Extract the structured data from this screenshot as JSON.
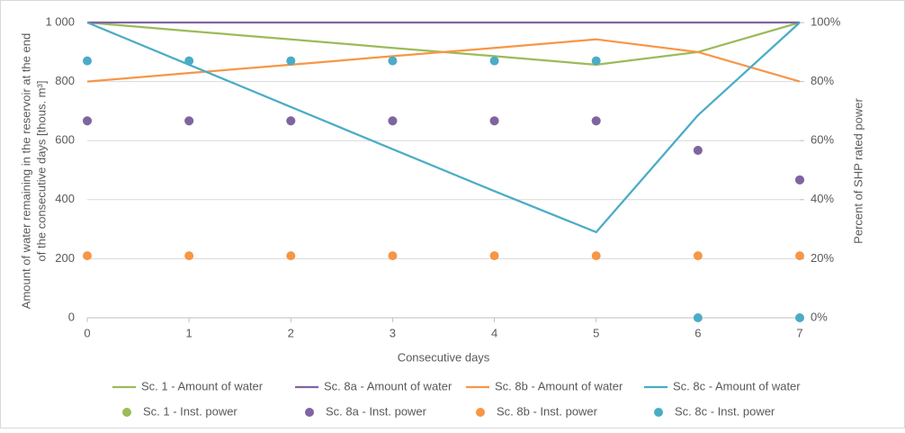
{
  "chart_data": {
    "type": "combo",
    "x_label": "Consecutive days",
    "y_label_lines": [
      "Amount of water remaining in the reservoir at the end",
      "of the consecutive days [thous. m³]"
    ],
    "y2_label": "Percent of SHP rated power",
    "x": [
      0,
      1,
      2,
      3,
      4,
      5,
      6,
      7
    ],
    "xlim": [
      0,
      7
    ],
    "xticks": [
      0,
      1,
      2,
      3,
      4,
      5,
      6,
      7
    ],
    "ylim": [
      0,
      1000
    ],
    "yticks": [
      0,
      200,
      400,
      600,
      800,
      {
        "value": 1000,
        "label": "1 000"
      }
    ],
    "y2lim": [
      0,
      100
    ],
    "y2ticks": [
      {
        "value": 0,
        "label": "0%"
      },
      {
        "value": 20,
        "label": "20%"
      },
      {
        "value": 40,
        "label": "40%"
      },
      {
        "value": 60,
        "label": "60%"
      },
      {
        "value": 80,
        "label": "80%"
      },
      {
        "value": 100,
        "label": "100%"
      }
    ],
    "grid": true,
    "series": [
      {
        "name": "Sc. 1 - Amount of water",
        "type": "line",
        "color": "#9bbb59",
        "values": [
          1000,
          971,
          943,
          914,
          886,
          857,
          900,
          1000
        ]
      },
      {
        "name": "Sc. 8a - Amount of water",
        "type": "line",
        "color": "#8064a2",
        "values": [
          1000,
          1000,
          1000,
          1000,
          1000,
          1000,
          1000,
          1000
        ]
      },
      {
        "name": "Sc. 8b - Amount of water",
        "type": "line",
        "color": "#f79646",
        "values": [
          800,
          829,
          857,
          886,
          914,
          943,
          900,
          800
        ]
      },
      {
        "name": "Sc. 8c - Amount of water",
        "type": "line",
        "color": "#4bacc6",
        "values": [
          1000,
          857,
          714,
          571,
          429,
          290,
          686,
          1000
        ]
      },
      {
        "name": "Sc. 1 - Inst. power",
        "type": "scatter",
        "axis": "y2",
        "color": "#9bbb59",
        "values": [
          66.7,
          66.7,
          66.7,
          66.7,
          66.7,
          66.7,
          56.7,
          46.7
        ]
      },
      {
        "name": "Sc. 8a - Inst. power",
        "type": "scatter",
        "axis": "y2",
        "color": "#8064a2",
        "values": [
          66.7,
          66.7,
          66.7,
          66.7,
          66.7,
          66.7,
          56.7,
          46.7
        ]
      },
      {
        "name": "Sc. 8b - Inst. power",
        "type": "scatter",
        "axis": "y2",
        "color": "#f79646",
        "values": [
          21,
          21,
          21,
          21,
          21,
          21,
          21,
          21
        ]
      },
      {
        "name": "Sc. 8c - Inst. power",
        "type": "scatter",
        "axis": "y2",
        "color": "#4bacc6",
        "values": [
          87,
          87,
          87,
          87,
          87,
          87,
          0,
          0
        ]
      }
    ]
  }
}
